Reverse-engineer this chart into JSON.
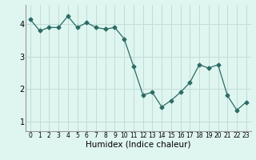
{
  "x": [
    0,
    1,
    2,
    3,
    4,
    5,
    6,
    7,
    8,
    9,
    10,
    11,
    12,
    13,
    14,
    15,
    16,
    17,
    18,
    19,
    20,
    21,
    22,
    23
  ],
  "y": [
    4.15,
    3.8,
    3.9,
    3.9,
    4.25,
    3.9,
    4.05,
    3.9,
    3.85,
    3.9,
    3.55,
    2.7,
    1.82,
    1.9,
    1.45,
    1.65,
    1.9,
    2.2,
    2.75,
    2.65,
    2.75,
    1.8,
    1.35,
    1.6
  ],
  "line_color": "#2d6b65",
  "marker": "D",
  "marker_size": 2.5,
  "bg_color": "#dff5f0",
  "grid_color": "#c0ddd8",
  "xlabel": "Humidex (Indice chaleur)",
  "ylabel": "",
  "ylim": [
    0.7,
    4.6
  ],
  "xlim": [
    -0.5,
    23.5
  ],
  "yticks": [
    1,
    2,
    3,
    4
  ],
  "xticks": [
    0,
    1,
    2,
    3,
    4,
    5,
    6,
    7,
    8,
    9,
    10,
    11,
    12,
    13,
    14,
    15,
    16,
    17,
    18,
    19,
    20,
    21,
    22,
    23
  ],
  "xlabel_fontsize": 7.5,
  "xtick_fontsize": 5.5,
  "ytick_fontsize": 7
}
